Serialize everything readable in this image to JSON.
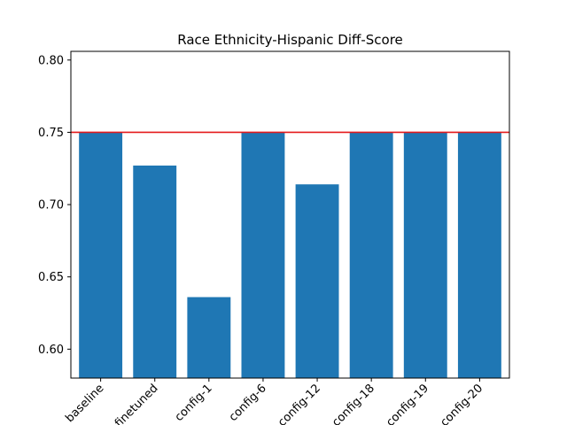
{
  "chart_data": {
    "type": "bar",
    "title": "Race Ethnicity-Hispanic Diff-Score",
    "xlabel": "",
    "ylabel": "",
    "categories": [
      "baseline",
      "finetuned",
      "config-1",
      "config-6",
      "config-12",
      "config-18",
      "config-19",
      "config-20"
    ],
    "values": [
      0.75,
      0.727,
      0.636,
      0.75,
      0.714,
      0.75,
      0.75,
      0.75
    ],
    "ylim": [
      0.58,
      0.806
    ],
    "yticks": [
      0.6,
      0.65,
      0.7,
      0.75,
      0.8
    ],
    "ytick_labels": [
      "0.60",
      "0.65",
      "0.70",
      "0.75",
      "0.80"
    ],
    "reference_line": {
      "y": 0.75,
      "color": "#e41a1c"
    },
    "bar_color": "#1f77b4",
    "grid": false,
    "xtick_rotation": "45"
  }
}
